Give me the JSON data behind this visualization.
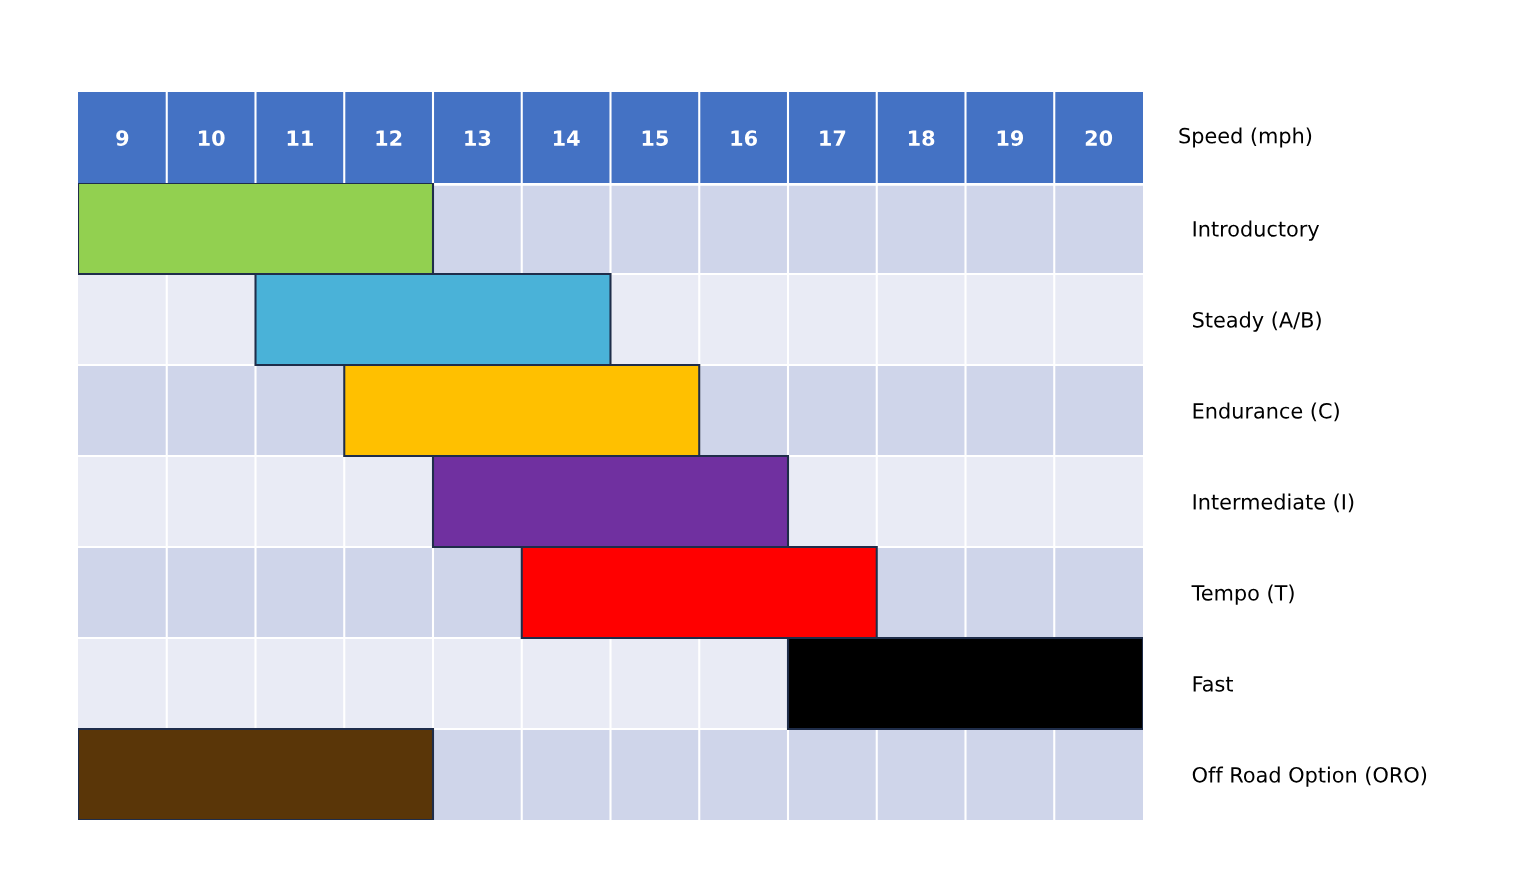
{
  "chart_data": {
    "type": "bar",
    "orientation": "horizontal",
    "xlabel": "Speed (mph)",
    "categories": [
      "Introductory",
      "Steady (A/B)",
      "Endurance (C)",
      "Intermediate (I)",
      "Tempo (T)",
      "Fast",
      "Off Road Option (ORO)"
    ],
    "base": [
      8.5,
      10.5,
      11.5,
      12.5,
      13.5,
      16.5,
      8.5
    ],
    "values": [
      4,
      4,
      4,
      4,
      4,
      4,
      4
    ],
    "colors": [
      "#92d050",
      "#4ab2d8",
      "#ffc000",
      "#7030a0",
      "#ff0000",
      "#000000",
      "#5a3608"
    ],
    "xlim": [
      8.5,
      20.5
    ],
    "xticks": [
      9,
      10,
      11,
      12,
      13,
      14,
      15,
      16,
      17,
      18,
      19,
      20
    ],
    "grid": false,
    "legend": false
  }
}
